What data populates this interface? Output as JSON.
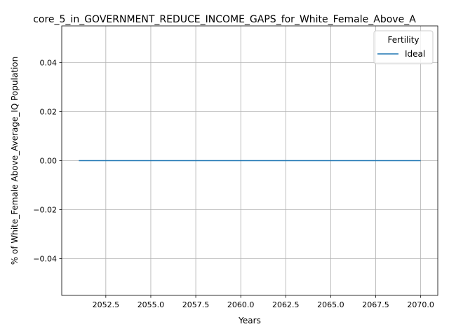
{
  "chart_data": {
    "type": "line",
    "title": "core_5_in_GOVERNMENT_REDUCE_INCOME_GAPS_for_White_Female_Above_A",
    "xlabel": "Years",
    "ylabel": "% of White_Female Above_Average_IQ Population",
    "xlim": [
      2050.05,
      2070.95
    ],
    "ylim": [
      -0.055,
      0.055
    ],
    "xticks": [
      2052.5,
      2055.0,
      2057.5,
      2060.0,
      2062.5,
      2065.0,
      2067.5,
      2070.0
    ],
    "xtick_labels": [
      "2052.5",
      "2055.0",
      "2057.5",
      "2060.0",
      "2062.5",
      "2065.0",
      "2067.5",
      "2070.0"
    ],
    "yticks": [
      -0.04,
      -0.02,
      0.0,
      0.02,
      0.04
    ],
    "ytick_labels": [
      "−0.04",
      "−0.02",
      "0.00",
      "0.02",
      "0.04"
    ],
    "grid": true,
    "legend": {
      "title": "Fertility",
      "placement": "top-right"
    },
    "series": [
      {
        "name": "Ideal",
        "color": "#1f77b4",
        "x": [
          2051,
          2052,
          2053,
          2054,
          2055,
          2056,
          2057,
          2058,
          2059,
          2060,
          2061,
          2062,
          2063,
          2064,
          2065,
          2066,
          2067,
          2068,
          2069,
          2070
        ],
        "y": [
          0,
          0,
          0,
          0,
          0,
          0,
          0,
          0,
          0,
          0,
          0,
          0,
          0,
          0,
          0,
          0,
          0,
          0,
          0,
          0
        ]
      }
    ]
  }
}
